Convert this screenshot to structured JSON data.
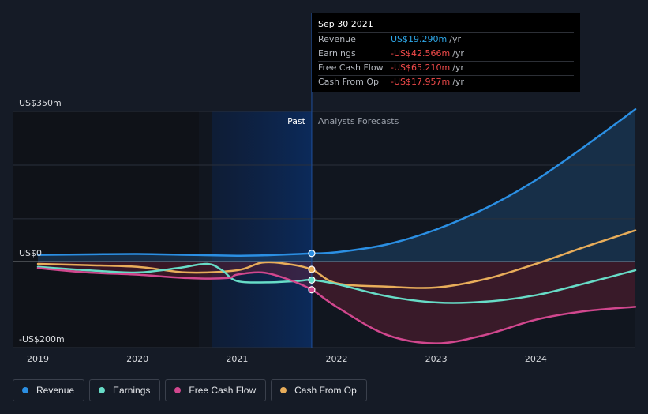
{
  "chart_data": {
    "type": "line",
    "x_ticks": [
      "2019",
      "2020",
      "2021",
      "2022",
      "2023",
      "2024"
    ],
    "y_top_label": "US$350m",
    "y_zero_label": "US$0",
    "y_bottom_label": "-US$200m",
    "ylim": [
      -200,
      350
    ],
    "divider_date": "Sep 30 2021",
    "past_label": "Past",
    "forecast_label": "Analysts Forecasts",
    "series": [
      {
        "name": "Revenue",
        "color": "#2b8fe3",
        "points": [
          [
            2019.0,
            16
          ],
          [
            2019.5,
            17
          ],
          [
            2020.0,
            18
          ],
          [
            2020.5,
            16
          ],
          [
            2021.0,
            14
          ],
          [
            2021.3,
            15
          ],
          [
            2021.75,
            19.29
          ],
          [
            2022.0,
            22
          ],
          [
            2022.5,
            40
          ],
          [
            2023.0,
            75
          ],
          [
            2023.5,
            125
          ],
          [
            2024.0,
            190
          ],
          [
            2024.5,
            270
          ],
          [
            2025.0,
            355
          ]
        ]
      },
      {
        "name": "Earnings",
        "color": "#67dcc7",
        "points": [
          [
            2019.0,
            -12
          ],
          [
            2019.5,
            -20
          ],
          [
            2020.0,
            -25
          ],
          [
            2020.4,
            -15
          ],
          [
            2020.7,
            -5
          ],
          [
            2020.85,
            -20
          ],
          [
            2021.0,
            -45
          ],
          [
            2021.3,
            -48
          ],
          [
            2021.6,
            -45
          ],
          [
            2021.75,
            -42.566
          ],
          [
            2022.0,
            -52
          ],
          [
            2022.5,
            -80
          ],
          [
            2023.0,
            -95
          ],
          [
            2023.5,
            -93
          ],
          [
            2024.0,
            -78
          ],
          [
            2024.5,
            -50
          ],
          [
            2025.0,
            -20
          ]
        ]
      },
      {
        "name": "Free Cash Flow",
        "color": "#d1478e",
        "points": [
          [
            2019.0,
            -15
          ],
          [
            2019.5,
            -25
          ],
          [
            2020.0,
            -30
          ],
          [
            2020.5,
            -38
          ],
          [
            2020.9,
            -38
          ],
          [
            2021.0,
            -30
          ],
          [
            2021.25,
            -25
          ],
          [
            2021.5,
            -40
          ],
          [
            2021.75,
            -65.21
          ],
          [
            2022.0,
            -105
          ],
          [
            2022.5,
            -170
          ],
          [
            2023.0,
            -190
          ],
          [
            2023.5,
            -170
          ],
          [
            2024.0,
            -135
          ],
          [
            2024.5,
            -115
          ],
          [
            2025.0,
            -105
          ]
        ]
      },
      {
        "name": "Cash From Op",
        "color": "#e8ad5a",
        "points": [
          [
            2019.0,
            -5
          ],
          [
            2019.5,
            -8
          ],
          [
            2020.0,
            -12
          ],
          [
            2020.5,
            -25
          ],
          [
            2021.0,
            -20
          ],
          [
            2021.25,
            -2
          ],
          [
            2021.5,
            -5
          ],
          [
            2021.75,
            -17.957
          ],
          [
            2022.0,
            -50
          ],
          [
            2022.5,
            -58
          ],
          [
            2023.0,
            -60
          ],
          [
            2023.5,
            -40
          ],
          [
            2024.0,
            -5
          ],
          [
            2024.5,
            35
          ],
          [
            2025.0,
            73
          ]
        ]
      }
    ]
  },
  "tooltip": {
    "date": "Sep 30 2021",
    "rows": [
      {
        "name": "Revenue",
        "value": "US$19.290m",
        "unit": "/yr",
        "sign": "pos"
      },
      {
        "name": "Earnings",
        "value": "-US$42.566m",
        "unit": "/yr",
        "sign": "neg"
      },
      {
        "name": "Free Cash Flow",
        "value": "-US$65.210m",
        "unit": "/yr",
        "sign": "neg"
      },
      {
        "name": "Cash From Op",
        "value": "-US$17.957m",
        "unit": "/yr",
        "sign": "neg"
      }
    ]
  },
  "legend": [
    {
      "label": "Revenue",
      "color": "#2b8fe3"
    },
    {
      "label": "Earnings",
      "color": "#67dcc7"
    },
    {
      "label": "Free Cash Flow",
      "color": "#d1478e"
    },
    {
      "label": "Cash From Op",
      "color": "#e8ad5a"
    }
  ]
}
